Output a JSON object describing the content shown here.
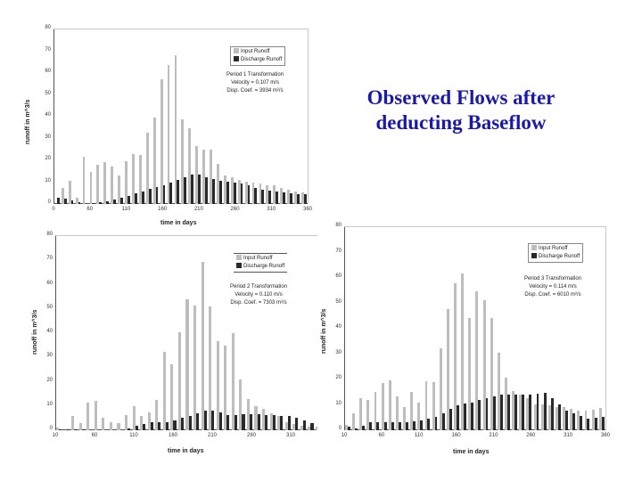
{
  "title_line1": "Observed Flows after",
  "title_line2": "deducting Baseflow",
  "chart_data": [
    {
      "type": "bar",
      "title": "Period 1",
      "xlabel": "time in days",
      "ylabel": "runoff in m^3/s",
      "ylim": [
        0,
        80
      ],
      "yticks": [
        "0",
        "10",
        "20",
        "30",
        "40",
        "50",
        "60",
        "70",
        "80"
      ],
      "xticks": [
        "0",
        "60",
        "110",
        "160",
        "210",
        "260",
        "310",
        "360"
      ],
      "legend": [
        "Input Runoff",
        "Discharge Runoff"
      ],
      "annotation": [
        "Period 1 Transformation",
        "Velocity = 0.107 m/s",
        "Disp. Coef. = 3934 m²/s"
      ],
      "series": [
        {
          "name": "Input Runoff",
          "values": [
            0,
            7.5,
            10.8,
            3,
            21.5,
            14.5,
            18,
            19.3,
            17,
            13.2,
            19.8,
            23,
            22.3,
            32.5,
            39.5,
            57.3,
            63.5,
            68.3,
            38.7,
            34.8,
            26.5,
            25,
            25,
            18.5,
            13.2,
            12.2,
            11,
            10.2,
            10,
            9.5,
            8.5,
            8.5,
            7.5,
            6.5,
            5.8,
            5.2
          ]
        },
        {
          "name": "Discharge Runoff",
          "values": [
            2.7,
            2.3,
            1.8,
            1,
            0,
            0.3,
            0.8,
            1.2,
            2,
            3,
            3.7,
            5,
            5.8,
            6.8,
            7.8,
            8.7,
            9.8,
            11.2,
            12.3,
            13.3,
            13.3,
            12.3,
            11.5,
            10.7,
            10.3,
            10,
            9.5,
            8.5,
            7.3,
            6.7,
            6,
            5.7,
            5.2,
            5,
            4.6,
            4.6
          ]
        }
      ]
    },
    {
      "type": "bar",
      "title": "Period 2",
      "xlabel": "time in days",
      "ylabel": "runoff in m^3/s",
      "ylim": [
        0,
        80
      ],
      "yticks": [
        "0",
        "10",
        "20",
        "30",
        "40",
        "50",
        "60",
        "70",
        "80"
      ],
      "xticks": [
        "10",
        "60",
        "110",
        "160",
        "210",
        "260",
        "310",
        "360"
      ],
      "legend": [
        "Input Runoff",
        "Discharge Runoff"
      ],
      "annotation": [
        "Period 2 Transformation",
        "Velocity = 0.110 m/s",
        "Disp. Coef. = 7303 m²/s"
      ],
      "series": [
        {
          "name": "Input Runoff",
          "values": [
            1.2,
            0,
            5.8,
            2.8,
            11.5,
            12,
            5,
            3.2,
            2.8,
            6.2,
            9.8,
            5.8,
            7.5,
            12.3,
            32.3,
            27.2,
            40.2,
            54,
            51.3,
            69.2,
            51,
            36.7,
            35,
            40,
            21,
            12.8,
            9.8,
            8.7,
            6.8,
            5.8,
            3.3,
            2.5,
            2,
            1.5,
            1.5,
            0.8
          ]
        },
        {
          "name": "Discharge Runoff",
          "values": [
            0.5,
            0.2,
            0.3,
            0.3,
            0,
            0,
            0,
            0,
            0,
            0.6,
            1.8,
            2.5,
            3.2,
            3.3,
            3.3,
            4,
            5,
            5.7,
            7,
            7.9,
            7.9,
            7.2,
            6.2,
            6.2,
            6.5,
            6.5,
            6.5,
            6.2,
            6.2,
            5.8,
            5.7,
            5.2,
            4.2,
            2.9,
            1.7,
            0.8
          ]
        }
      ]
    },
    {
      "type": "bar",
      "title": "Period 3",
      "xlabel": "time in days",
      "ylabel": "runoff in m^3/s",
      "ylim": [
        0,
        80
      ],
      "yticks": [
        "0",
        "10",
        "20",
        "30",
        "40",
        "50",
        "60",
        "70",
        "80"
      ],
      "xticks": [
        "10",
        "60",
        "110",
        "160",
        "210",
        "260",
        "310",
        "360"
      ],
      "legend": [
        "Input Runoff",
        "Discharge Runoff"
      ],
      "annotation": [
        "Period 3 Transformation",
        "Velocity = 0.114 m/s",
        "Disp. Coef. = 6010 m²/s"
      ],
      "series": [
        {
          "name": "Input Runoff",
          "values": [
            2.1,
            6.5,
            12.7,
            12,
            15.2,
            18.7,
            19.8,
            13.2,
            9.3,
            15,
            10.9,
            19.2,
            18.8,
            32.3,
            47.6,
            57.8,
            61.6,
            44.3,
            54.6,
            51.3,
            44.3,
            30.6,
            20.8,
            15.5,
            14.2,
            12.6,
            10.3,
            10.3,
            10,
            9.3,
            9.2,
            8.4,
            7.8,
            7.6,
            8.2,
            8.9
          ]
        },
        {
          "name": "Discharge Runoff",
          "values": [
            1.4,
            0.7,
            1.9,
            3.3,
            3.3,
            3.3,
            3.3,
            3.3,
            3.3,
            3.5,
            4,
            4.6,
            5.4,
            6.5,
            8.3,
            10,
            10.7,
            11,
            11.9,
            12.5,
            13.5,
            14,
            14,
            14,
            14,
            14,
            14.5,
            14.8,
            12.5,
            10.2,
            7.8,
            6.5,
            5.5,
            4.7,
            4.9,
            5.2
          ]
        }
      ]
    }
  ]
}
